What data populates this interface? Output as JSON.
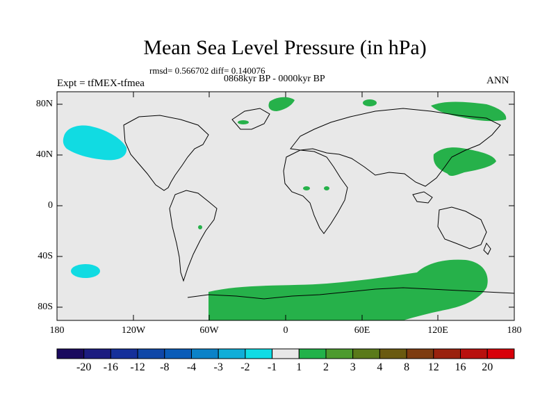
{
  "title": "Mean Sea Level Pressure (in hPa)",
  "stats": "rmsd= 0.566702 diff= 0.140076",
  "period": "0868kyr BP - 0000kyr BP",
  "experiment": "Expt = tfMEX-tfmea",
  "season": "ANN",
  "lat_ticks": [
    "80N",
    "40N",
    "0",
    "40S",
    "80S"
  ],
  "lon_ticks": [
    "180",
    "120W",
    "60W",
    "0",
    "60E",
    "120E",
    "180"
  ],
  "colorbar": {
    "labels": [
      "-20",
      "-16",
      "-12",
      "-8",
      "-4",
      "-3",
      "-2",
      "-1",
      "1",
      "2",
      "3",
      "4",
      "8",
      "12",
      "16",
      "20"
    ],
    "colors": [
      "#1a0a5e",
      "#1c1c80",
      "#15309a",
      "#0f47a8",
      "#0a5cb8",
      "#0b82c8",
      "#10aed8",
      "#10dce4",
      "#e8e8e8",
      "#22b24a",
      "#4c9a2e",
      "#5a7a1a",
      "#6a5a10",
      "#7e3c10",
      "#9a220e",
      "#b8100e",
      "#d8000a"
    ]
  },
  "colors": {
    "background": "#e8e8e8",
    "positive": "#26b14a",
    "negative": "#11dbe2",
    "coast": "#000000"
  }
}
